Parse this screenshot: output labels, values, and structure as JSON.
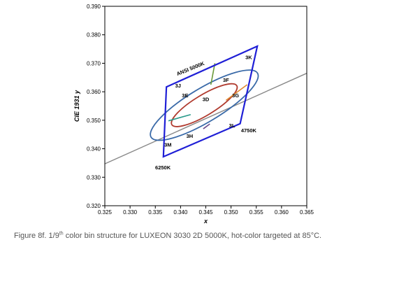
{
  "caption": {
    "prefix": "Figure 8f. 1/9",
    "superscript": "th",
    "suffix": " color bin structure for LUXEON 3030 2D 5000K, hot-color targeted at 85°C."
  },
  "colors": {
    "quadrangle": "#1f1fd6",
    "outer_ellipse": "#3a6aa8",
    "inner_ellipse": "#b03a2e",
    "planckian": "#888888",
    "divider_top": "#6a9a3a",
    "divider_right": "#e08a30",
    "divider_left": "#2a9a8a",
    "divider_bottom": "#6a4a8a",
    "frame": "#000000"
  },
  "chart_data": {
    "type": "scatter",
    "xlabel": "x",
    "ylabel": "CIE 1931 y",
    "xlim": [
      0.325,
      0.365
    ],
    "ylim": [
      0.32,
      0.39
    ],
    "x_ticks": [
      "0.325",
      "0.330",
      "0.335",
      "0.340",
      "0.345",
      "0.350",
      "0.355",
      "0.360",
      "0.365"
    ],
    "y_ticks": [
      "0.320",
      "0.330",
      "0.340",
      "0.350",
      "0.360",
      "0.370",
      "0.380",
      "0.390"
    ],
    "grid": false,
    "planckian_locus": {
      "x": [
        0.325,
        0.365
      ],
      "y": [
        0.3347,
        0.3665
      ]
    },
    "ansi_quadrangle": {
      "x": [
        0.3372,
        0.3552,
        0.3518,
        0.3366
      ],
      "y": [
        0.3617,
        0.376,
        0.3488,
        0.3372
      ]
    },
    "outer_ellipse": {
      "cx": 0.3447,
      "cy": 0.3553,
      "rx": 0.0123,
      "ry": 0.0059,
      "angle_deg": 31
    },
    "inner_ellipse": {
      "cx": 0.3447,
      "cy": 0.3553,
      "rx": 0.0075,
      "ry": 0.0036,
      "angle_deg": 31
    },
    "bin_dividers": [
      {
        "x": [
          0.3468,
          0.346
        ],
        "y": [
          0.37,
          0.3625
        ]
      },
      {
        "x": [
          0.3532,
          0.349
        ],
        "y": [
          0.3625,
          0.357
        ]
      },
      {
        "x": [
          0.3376,
          0.342
        ],
        "y": [
          0.3498,
          0.352
        ]
      },
      {
        "x": [
          0.3445,
          0.3458
        ],
        "y": [
          0.347,
          0.3487
        ]
      }
    ],
    "annotations": [
      {
        "text": "ANSI 5000K",
        "x": 0.342,
        "y": 0.368,
        "rotate": -22
      },
      {
        "text": "3K",
        "x": 0.3535,
        "y": 0.372
      },
      {
        "text": "3J",
        "x": 0.3395,
        "y": 0.362
      },
      {
        "text": "3F",
        "x": 0.349,
        "y": 0.364
      },
      {
        "text": "3E",
        "x": 0.3409,
        "y": 0.3585
      },
      {
        "text": "3D",
        "x": 0.345,
        "y": 0.3572
      },
      {
        "text": "3G",
        "x": 0.3509,
        "y": 0.3585
      },
      {
        "text": "3H",
        "x": 0.3418,
        "y": 0.3443
      },
      {
        "text": "3L",
        "x": 0.3502,
        "y": 0.348
      },
      {
        "text": "4750K",
        "x": 0.3535,
        "y": 0.3463
      },
      {
        "text": "3M",
        "x": 0.3375,
        "y": 0.3412
      },
      {
        "text": "6250K",
        "x": 0.3365,
        "y": 0.3333
      }
    ]
  }
}
